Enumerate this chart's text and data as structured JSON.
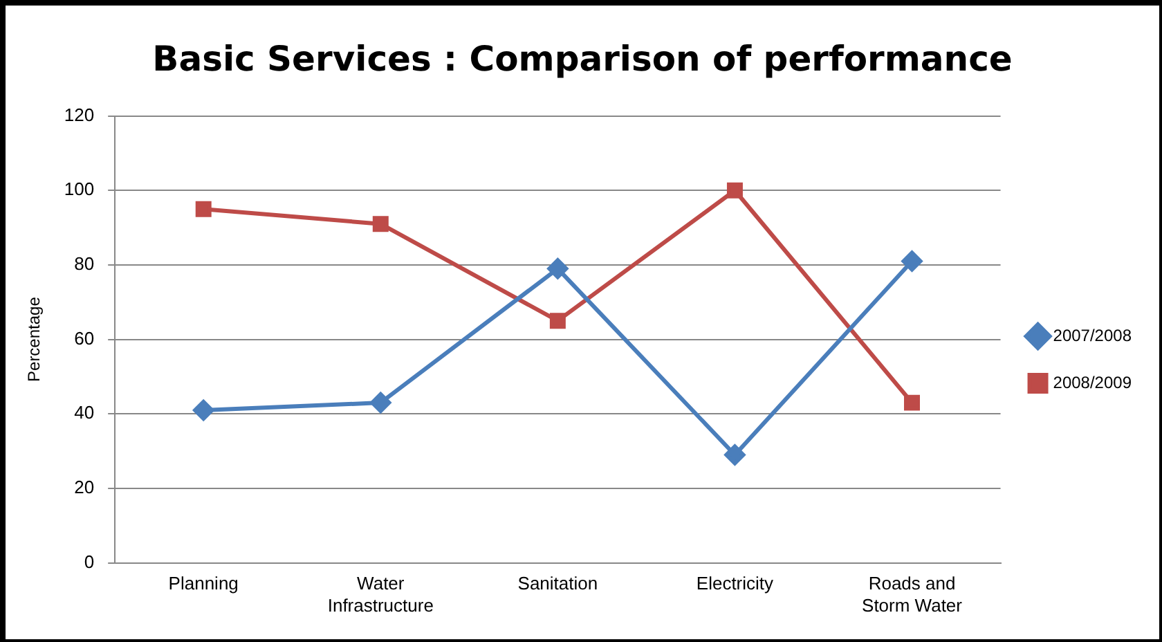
{
  "chart_data": {
    "type": "line",
    "title": "Basic Services : Comparison of performance",
    "ylabel": "Percentage",
    "categories": [
      "Planning",
      "Water Infrastructure",
      "Sanitation",
      "Electricity",
      "Roads and Storm Water"
    ],
    "series": [
      {
        "name": "2007/2008",
        "color": "#4a7ebb",
        "marker": "diamond",
        "values": [
          41,
          43,
          79,
          29,
          81
        ]
      },
      {
        "name": "2008/2009",
        "color": "#be4b48",
        "marker": "square",
        "values": [
          95,
          91,
          65,
          100,
          43
        ]
      }
    ],
    "ylim": [
      0,
      120
    ],
    "yticks": [
      0,
      20,
      40,
      60,
      80,
      100,
      120
    ],
    "grid": "y",
    "legend": "right",
    "line_style": "solid"
  }
}
